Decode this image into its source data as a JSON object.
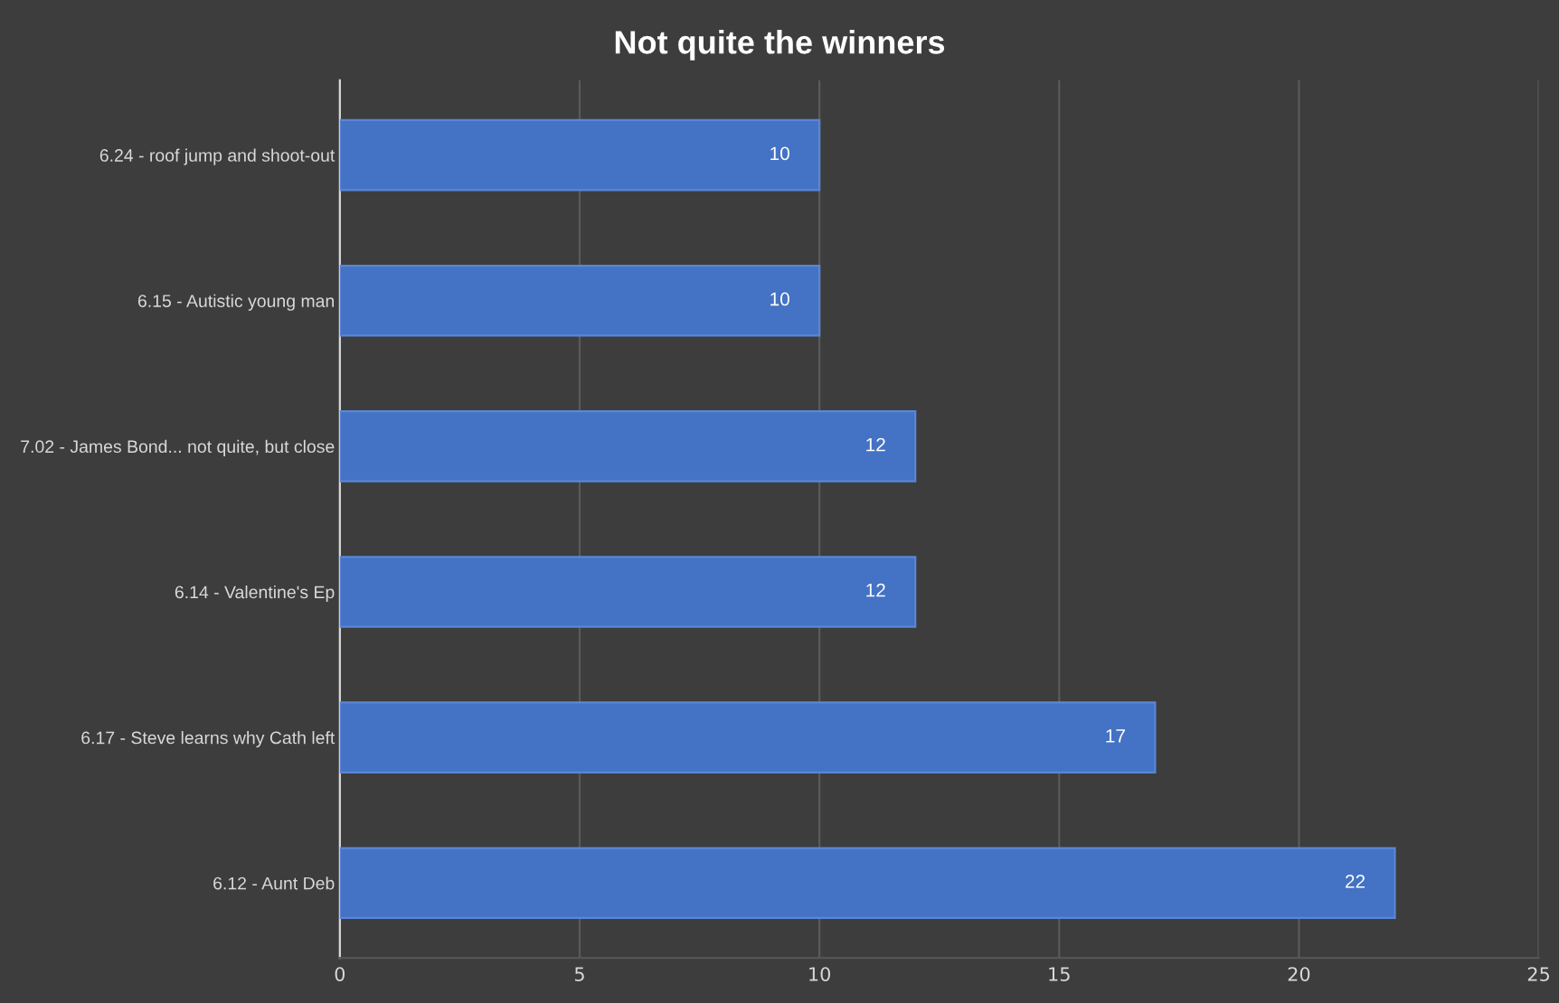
{
  "chart_data": {
    "type": "bar",
    "orientation": "horizontal",
    "title": "Not quite the winners",
    "categories": [
      "6.24 - roof jump and shoot-out",
      "6.15 - Autistic young man",
      "7.02 - James Bond... not quite, but close",
      "6.14 - Valentine's Ep",
      "6.17 - Steve learns why Cath left",
      "6.12 - Aunt Deb"
    ],
    "values": [
      10,
      10,
      12,
      12,
      17,
      22
    ],
    "color": "#4472c4",
    "xlim": [
      0,
      25
    ],
    "xticks": [
      0,
      5,
      10,
      15,
      20,
      25
    ],
    "grid": "x",
    "data_labels": true,
    "legend": false
  }
}
